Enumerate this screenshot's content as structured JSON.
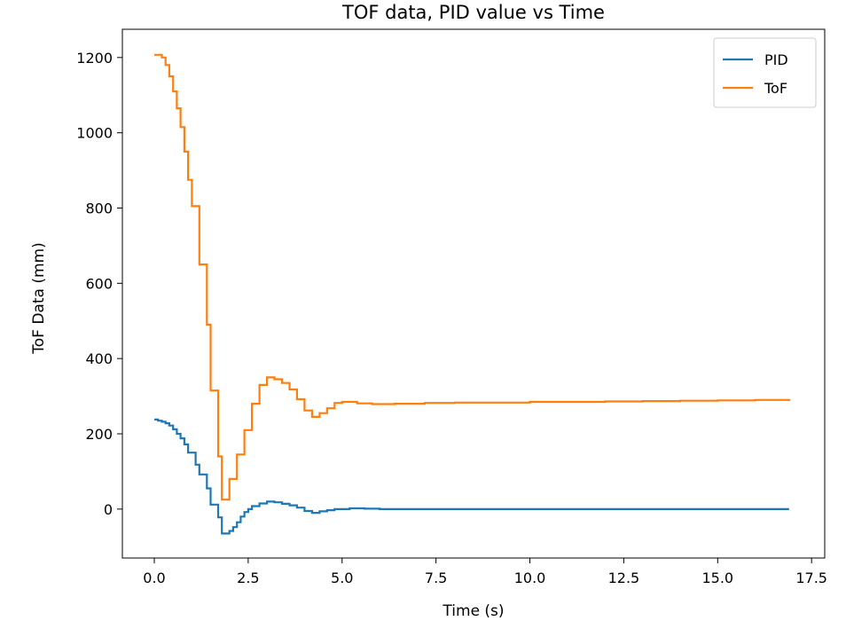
{
  "chart_data": {
    "type": "line",
    "title": "TOF data, PID value vs Time",
    "xlabel": "Time (s)",
    "ylabel": "ToF Data (mm)",
    "xlim": [
      -0.85,
      17.85
    ],
    "ylim": [
      -130,
      1275
    ],
    "xticks": [
      0.0,
      2.5,
      5.0,
      7.5,
      10.0,
      12.5,
      15.0,
      17.5
    ],
    "xtick_labels": [
      "0.0",
      "2.5",
      "5.0",
      "7.5",
      "10.0",
      "12.5",
      "15.0",
      "17.5"
    ],
    "yticks": [
      0,
      200,
      400,
      600,
      800,
      1000,
      1200
    ],
    "ytick_labels": [
      "0",
      "200",
      "400",
      "600",
      "800",
      "1000",
      "1200"
    ],
    "grid": false,
    "legend_position": "top-right",
    "series": [
      {
        "name": "PID",
        "color": "#1f77b4",
        "step": true,
        "points": [
          [
            0.0,
            238
          ],
          [
            0.1,
            235
          ],
          [
            0.2,
            232
          ],
          [
            0.3,
            228
          ],
          [
            0.4,
            222
          ],
          [
            0.5,
            212
          ],
          [
            0.6,
            200
          ],
          [
            0.7,
            188
          ],
          [
            0.8,
            172
          ],
          [
            0.9,
            150
          ],
          [
            1.1,
            118
          ],
          [
            1.2,
            92
          ],
          [
            1.4,
            55
          ],
          [
            1.5,
            12
          ],
          [
            1.7,
            -22
          ],
          [
            1.8,
            -65
          ],
          [
            2.0,
            -58
          ],
          [
            2.1,
            -48
          ],
          [
            2.2,
            -35
          ],
          [
            2.3,
            -20
          ],
          [
            2.4,
            -8
          ],
          [
            2.5,
            0
          ],
          [
            2.6,
            8
          ],
          [
            2.8,
            15
          ],
          [
            3.0,
            20
          ],
          [
            3.2,
            18
          ],
          [
            3.4,
            14
          ],
          [
            3.6,
            10
          ],
          [
            3.8,
            4
          ],
          [
            4.0,
            -5
          ],
          [
            4.2,
            -10
          ],
          [
            4.4,
            -6
          ],
          [
            4.6,
            -3
          ],
          [
            4.8,
            0
          ],
          [
            5.2,
            2
          ],
          [
            5.6,
            1
          ],
          [
            6.0,
            0
          ],
          [
            7.0,
            0
          ],
          [
            8.0,
            0
          ],
          [
            9.0,
            0
          ],
          [
            10.0,
            0
          ],
          [
            11.0,
            0
          ],
          [
            12.0,
            0
          ],
          [
            13.0,
            0
          ],
          [
            14.0,
            0
          ],
          [
            15.0,
            0
          ],
          [
            16.0,
            0
          ],
          [
            16.9,
            0
          ]
        ]
      },
      {
        "name": "ToF",
        "color": "#ff7f0e",
        "step": true,
        "points": [
          [
            0.0,
            1207
          ],
          [
            0.2,
            1200
          ],
          [
            0.3,
            1180
          ],
          [
            0.4,
            1150
          ],
          [
            0.5,
            1110
          ],
          [
            0.6,
            1065
          ],
          [
            0.7,
            1015
          ],
          [
            0.8,
            950
          ],
          [
            0.9,
            875
          ],
          [
            1.0,
            805
          ],
          [
            1.2,
            650
          ],
          [
            1.4,
            490
          ],
          [
            1.5,
            315
          ],
          [
            1.7,
            140
          ],
          [
            1.8,
            25
          ],
          [
            2.0,
            80
          ],
          [
            2.2,
            145
          ],
          [
            2.4,
            210
          ],
          [
            2.6,
            280
          ],
          [
            2.8,
            330
          ],
          [
            3.0,
            350
          ],
          [
            3.2,
            345
          ],
          [
            3.4,
            335
          ],
          [
            3.6,
            318
          ],
          [
            3.8,
            292
          ],
          [
            4.0,
            262
          ],
          [
            4.2,
            245
          ],
          [
            4.4,
            255
          ],
          [
            4.6,
            268
          ],
          [
            4.8,
            282
          ],
          [
            5.0,
            285
          ],
          [
            5.4,
            281
          ],
          [
            5.8,
            279
          ],
          [
            6.4,
            280
          ],
          [
            7.2,
            282
          ],
          [
            8.0,
            283
          ],
          [
            9.0,
            283
          ],
          [
            10.0,
            285
          ],
          [
            11.0,
            285
          ],
          [
            12.0,
            286
          ],
          [
            13.0,
            287
          ],
          [
            14.0,
            288
          ],
          [
            15.0,
            289
          ],
          [
            16.0,
            290
          ],
          [
            16.9,
            287
          ]
        ]
      }
    ]
  }
}
